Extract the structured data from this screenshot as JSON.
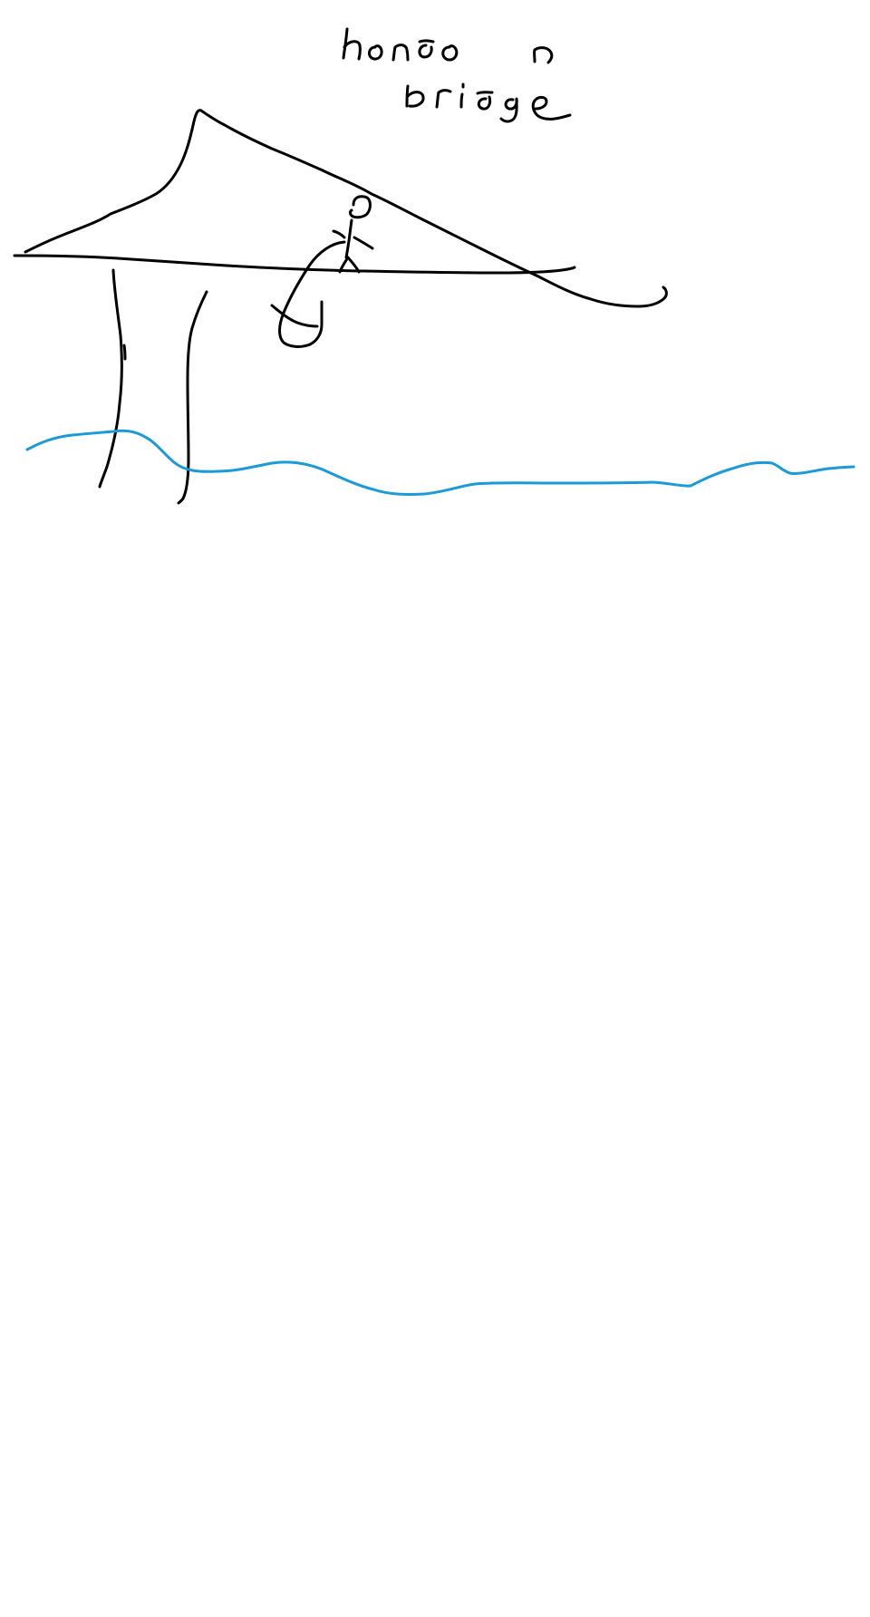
{
  "drawing": {
    "background_color": "#ffffff",
    "ink_color": "#000000",
    "water_color": "#1a9ad6",
    "caption_lines": [
      "london",
      "bridge"
    ]
  }
}
